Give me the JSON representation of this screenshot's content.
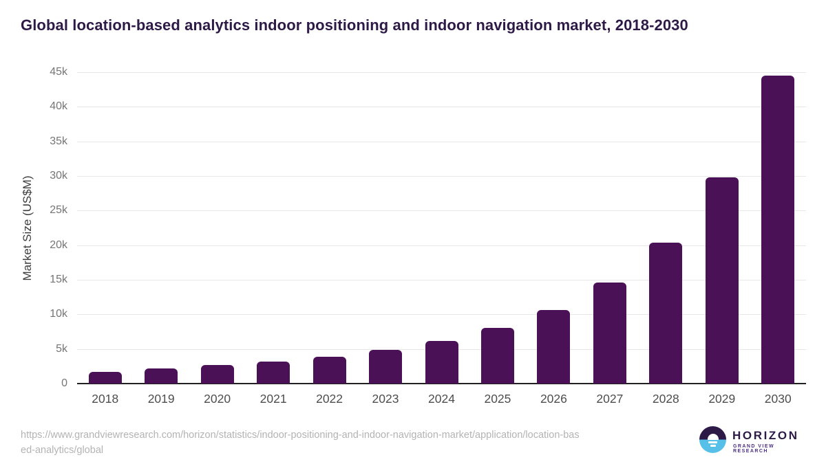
{
  "page_title": "Global location-based analytics indoor positioning and indoor navigation market, 2018-2030",
  "chart_data": {
    "type": "bar",
    "title": "Global location-based analytics indoor positioning and indoor navigation market, 2018-2030",
    "categories": [
      "2018",
      "2019",
      "2020",
      "2021",
      "2022",
      "2023",
      "2024",
      "2025",
      "2026",
      "2027",
      "2028",
      "2029",
      "2030"
    ],
    "values": [
      1700,
      2200,
      2650,
      3200,
      3900,
      4850,
      6200,
      8000,
      10600,
      14650,
      20400,
      29800,
      44500
    ],
    "xlabel": "",
    "ylabel": "Market Size (US$M)",
    "ylim": [
      0,
      45000
    ],
    "ytick_step": 5000,
    "ytick_labels": [
      "0",
      "5k",
      "10k",
      "15k",
      "20k",
      "25k",
      "30k",
      "35k",
      "40k",
      "45k"
    ],
    "grid": "horizontal",
    "legend_position": "none",
    "bar_color": "#4a1157"
  },
  "colors": {
    "title_text": "#2e1a47",
    "bar": "#4a1157",
    "gridline": "#e7e7e7",
    "axis_line": "#212121",
    "tick_text": "#757575",
    "xtick_text": "#4d4d4d",
    "url_text": "#b3b3b3",
    "logo_dark": "#2e1a47",
    "logo_blue": "#56c0e8",
    "logo_subtitle": "#4b2e83"
  },
  "footer": {
    "source_url": "https://www.grandviewresearch.com/horizon/statistics/indoor-positioning-and-indoor-navigation-market/application/location-based-analytics/global",
    "source_url_lines": {
      "line1": "https://www.grandviewresearch.com/horizon/statistics/indoor-positioning-and-indoor-navigation-market/application/location-bas",
      "line2": "ed-analytics/global"
    },
    "logo": {
      "name": "HORIZON",
      "subtitle": "GRAND VIEW RESEARCH"
    }
  }
}
